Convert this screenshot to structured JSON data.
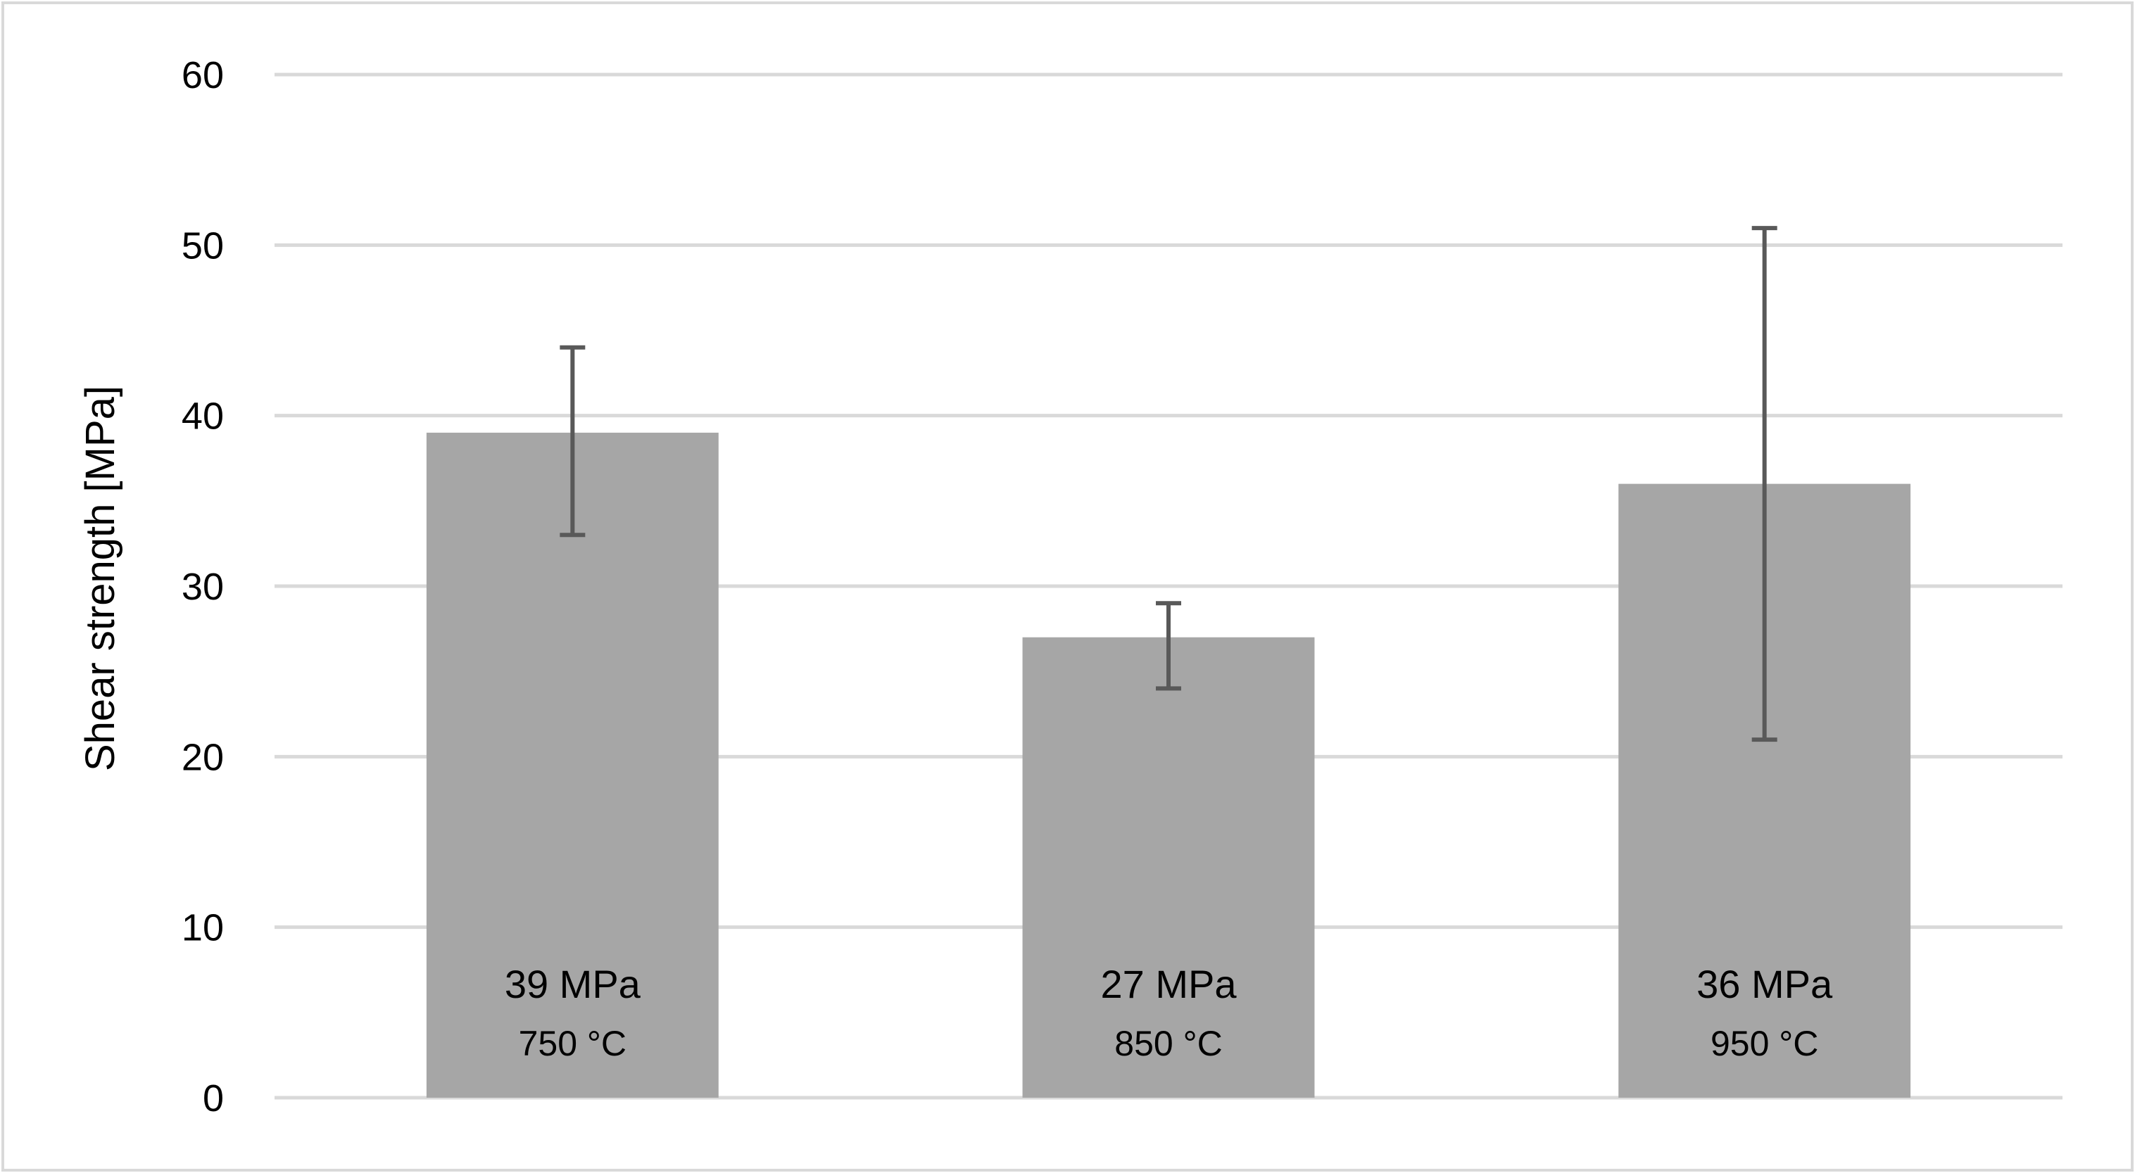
{
  "chart_data": {
    "type": "bar",
    "title": "",
    "xlabel": "",
    "ylabel": "Shear strength [MPa]",
    "ylim": [
      0,
      60
    ],
    "yticks": [
      0,
      10,
      20,
      30,
      40,
      50,
      60
    ],
    "grid": true,
    "legend": "none",
    "categories": [
      "750 °C",
      "850 °C",
      "950 °C"
    ],
    "values": [
      39,
      27,
      36
    ],
    "value_labels": [
      "39 MPa",
      "27 MPa",
      "36 MPa"
    ],
    "error_low": [
      33,
      24,
      21
    ],
    "error_high": [
      44,
      29,
      51
    ],
    "colors": {
      "bar": "#a6a6a6",
      "error_bar": "#595959",
      "grid": "#d9d9d9",
      "border": "#d9d9d9"
    }
  }
}
